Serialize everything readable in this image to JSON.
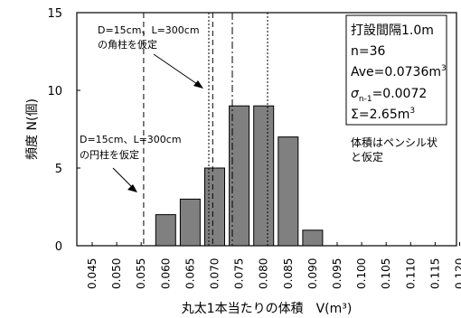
{
  "chart_data": {
    "type": "bar",
    "xlabel": "丸太1本当たりの体積　V(m³)",
    "ylabel": "頻度 N(個)",
    "categories": [
      "0.045",
      "0.050",
      "0.055",
      "0.060",
      "0.065",
      "0.070",
      "0.075",
      "0.080",
      "0.085",
      "0.090",
      "0.095",
      "0.100",
      "0.105",
      "0.110",
      "0.115",
      "0.120"
    ],
    "values": [
      0,
      0,
      0,
      2,
      3,
      5,
      9,
      9,
      7,
      1,
      0,
      0,
      0,
      0,
      0,
      0
    ],
    "ylim": [
      0,
      15
    ],
    "yticks": [
      "0",
      "5",
      "10",
      "15"
    ],
    "bar_color": "#808080",
    "vlines": [
      {
        "x": 0.0555,
        "style": "dashed"
      },
      {
        "x": 0.0688,
        "style": "dotted"
      },
      {
        "x": 0.0696,
        "style": "dashed"
      },
      {
        "x": 0.0736,
        "style": "dashdot"
      },
      {
        "x": 0.0808,
        "style": "dotted"
      }
    ],
    "annotations": {
      "square_line1": "D=15cm、L=300cm",
      "square_line2": "の角柱を仮定",
      "round_line1": "D=15cm、L=300cm",
      "round_line2": "の円柱を仮定",
      "note_line1": "体積はペンシル状",
      "note_line2": "と仮定"
    },
    "stats_box": {
      "line1": "打設間隔1.0m",
      "line2": "n=36",
      "line3_main": "Ave=0.0736m",
      "line3_sup": "3",
      "line4_sigma": "σ",
      "line4_sub": "n-1",
      "line4_value": "=0.0072",
      "line5_main": "Σ=2.65m",
      "line5_sup": "3"
    }
  }
}
